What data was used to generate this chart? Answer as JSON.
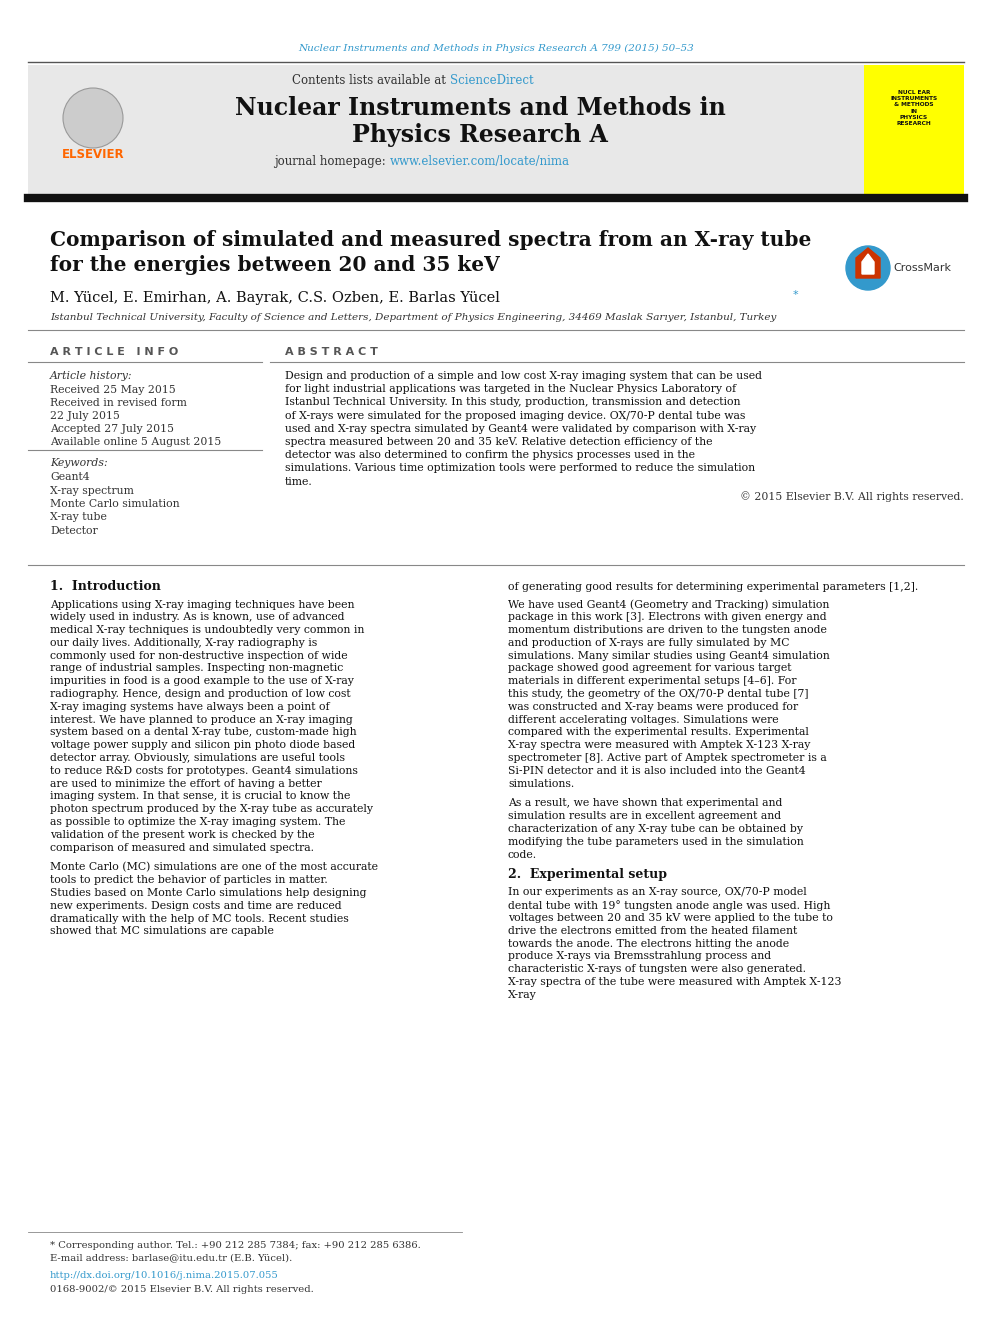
{
  "journal_ref": "Nuclear Instruments and Methods in Physics Research A 799 (2015) 50–53",
  "journal_ref_color": "#3399cc",
  "header_bg": "#e8e8e8",
  "contents_text": "Contents lists available at ",
  "sciencedirect_text": "ScienceDirect",
  "sciencedirect_color": "#3399cc",
  "journal_name_line1": "Nuclear Instruments and Methods in",
  "journal_name_line2": "Physics Research A",
  "journal_homepage_text": "journal homepage: ",
  "journal_homepage_url": "www.elsevier.com/locate/nima",
  "journal_homepage_url_color": "#3399cc",
  "elsevier_color": "#FF6600",
  "article_title_line1": "Comparison of simulated and measured spectra from an X-ray tube",
  "article_title_line2": "for the energies between 20 and 35 keV",
  "authors": "M. Yücel, E. Emirhan, A. Bayrak, C.S. Ozben, E. Barlas Yücel",
  "affiliation": "Istanbul Technical University, Faculty of Science and Letters, Department of Physics Engineering, 34469 Maslak Sarıyer, Istanbul, Turkey",
  "article_info_title": "A R T I C L E   I N F O",
  "abstract_title": "A B S T R A C T",
  "article_history_label": "Article history:",
  "received": "Received 25 May 2015",
  "received_revised": "Received in revised form",
  "revised_date": "22 July 2015",
  "accepted": "Accepted 27 July 2015",
  "available_online": "Available online 5 August 2015",
  "keywords_label": "Keywords:",
  "keywords": [
    "Geant4",
    "X-ray spectrum",
    "Monte Carlo simulation",
    "X-ray tube",
    "Detector"
  ],
  "abstract_text": "Design and production of a simple and low cost X-ray imaging system that can be used for light industrial applications was targeted in the Nuclear Physics Laboratory of Istanbul Technical University. In this study, production, transmission and detection of X-rays were simulated for the proposed imaging device. OX/70-P dental tube was used and X-ray spectra simulated by Geant4 were validated by comparison with X-ray spectra measured between 20 and 35 keV. Relative detection efficiency of the detector was also determined to confirm the physics processes used in the simulations. Various time optimization tools were performed to reduce the simulation time.",
  "copyright": "© 2015 Elsevier B.V. All rights reserved.",
  "section1_title": "1.  Introduction",
  "intro_col1_para1": "Applications using X-ray imaging techniques have been widely used in industry. As is known, use of advanced medical X-ray techniques is undoubtedly very common in our daily lives. Additionally, X-ray radiography is commonly used for non-destructive inspection of wide range of industrial samples. Inspecting non-magnetic impurities in food is a good example to the use of X-ray radiography. Hence, design and production of low cost X-ray imaging systems have always been a point of interest. We have planned to produce an X-ray imaging system based on a dental X-ray tube, custom-made high voltage power supply and silicon pin photo diode based detector array. Obviously, simulations are useful tools to reduce R&D costs for prototypes. Geant4 simulations are used to minimize the effort of having a better imaging system. In that sense, it is crucial to know the photon spectrum produced by the X-ray tube as accurately as possible to optimize the X-ray imaging system. The validation of the present work is checked by the comparison of measured and simulated spectra.",
  "intro_col1_para2": "Monte Carlo (MC) simulations are one of the most accurate tools to predict the behavior of particles in matter. Studies based on Monte Carlo simulations help designing new experiments. Design costs and time are reduced dramatically with the help of MC tools. Recent studies showed that MC simulations are capable",
  "intro_col2_para1": "of generating good results for determining experimental parameters [1,2].",
  "intro_col2_para2": "We have used Geant4 (Geometry and Tracking) simulation package in this work [3]. Electrons with given energy and momentum distributions are driven to the tungsten anode and production of X-rays are fully simulated by MC simulations. Many similar studies using Geant4 simulation package showed good agreement for various target materials in different experimental setups [4–6]. For this study, the geometry of the OX/70-P dental tube [7] was constructed and X-ray beams were produced for different accelerating voltages. Simulations were compared with the experimental results. Experimental X-ray spectra were measured with Amptek X-123 X-ray spectrometer [8]. Active part of Amptek spectrometer is a Si-PIN detector and it is also included into the Geant4 simulations.",
  "intro_col2_para3": "As a result, we have shown that experimental and simulation results are in excellent agreement and characterization of any X-ray tube can be obtained by modifying the tube parameters used in the simulation code.",
  "section2_title": "2.  Experimental setup",
  "exp_setup_col2": "In our experiments as an X-ray source, OX/70-P model dental tube with 19° tungsten anode angle was used. High voltages between 20 and 35 kV were applied to the tube to drive the electrons emitted from the heated filament towards the anode. The electrons hitting the anode produce X-rays via Bremsstrahlung process and characteristic X-rays of tungsten were also generated. X-ray spectra of the tube were measured with Amptek X-123 X-ray",
  "footnote_star": "* Corresponding author. Tel.: +90 212 285 7384; fax: +90 212 285 6386.",
  "footnote_email": "E-mail address: barlase@itu.edu.tr (E.B. Yücel).",
  "doi": "http://dx.doi.org/10.1016/j.nima.2015.07.055",
  "issn": "0168-9002/© 2015 Elsevier B.V. All rights reserved.",
  "bg_color": "#ffffff",
  "text_color": "#000000",
  "yellow_sidebar_color": "#ffff00"
}
